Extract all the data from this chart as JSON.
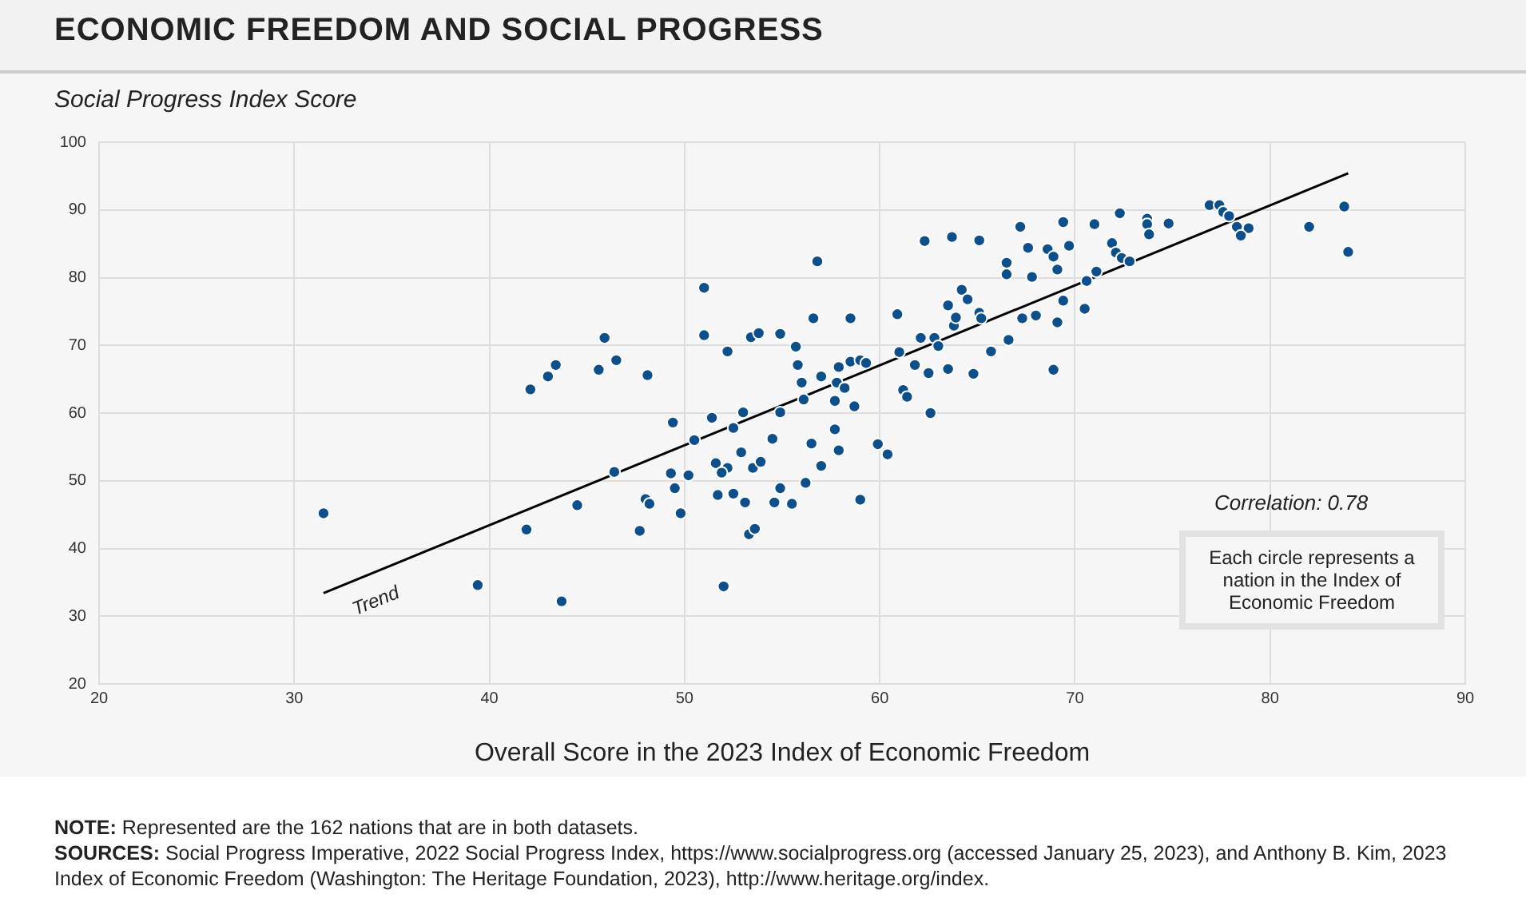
{
  "chart_data": {
    "type": "scatter",
    "title": "ECONOMIC FREEDOM AND SOCIAL PROGRESS",
    "ylabel": "Social Progress Index Score",
    "xlabel": "Overall Score in the 2023 Index of Economic Freedom",
    "xlim": [
      20,
      90
    ],
    "xticks": [
      20,
      30,
      40,
      50,
      60,
      70,
      80,
      90
    ],
    "ylim": [
      20,
      100
    ],
    "yticks": [
      20,
      30,
      40,
      50,
      60,
      70,
      80,
      90,
      100
    ],
    "grid": true,
    "legend": false,
    "series": [
      {
        "color": "#0b4f8c",
        "marker": "circle",
        "x": [
          31.5,
          41.9,
          39.4,
          43.7,
          42.1,
          43.0,
          43.4,
          45.6,
          45.9,
          46.5,
          48.1,
          49.4,
          50.5,
          46.4,
          44.5,
          49.3,
          50.2,
          49.5,
          48.0,
          48.2,
          49.8,
          47.7,
          51.0,
          56.8,
          51.0,
          52.2,
          53.4,
          53.8,
          54.9,
          55.7,
          55.8,
          56.6,
          58.5,
          60.9,
          56.0,
          57.0,
          56.1,
          57.9,
          58.5,
          59.0,
          59.3,
          57.8,
          58.2,
          57.7,
          58.7,
          61.0,
          61.8,
          62.1,
          62.5,
          62.8,
          63.0,
          63.5,
          62.6,
          61.2,
          61.4,
          64.8,
          65.7,
          66.6,
          63.8,
          63.5,
          63.9,
          64.2,
          64.5,
          65.1,
          65.2,
          62.3,
          63.7,
          65.1,
          66.5,
          66.5,
          67.2,
          67.6,
          67.8,
          68.6,
          68.9,
          69.1,
          69.4,
          69.7,
          67.3,
          68.0,
          69.1,
          69.4,
          68.9,
          70.6,
          70.5,
          51.4,
          53.0,
          52.5,
          54.9,
          54.5,
          52.9,
          56.5,
          57.7,
          57.9,
          59.9,
          60.4,
          57.0,
          51.6,
          52.2,
          51.9,
          53.5,
          53.9,
          51.7,
          52.5,
          53.1,
          54.9,
          54.6,
          55.5,
          56.2,
          59.0,
          53.3,
          53.6,
          52.0,
          71.0,
          72.3,
          73.7,
          73.7,
          73.8,
          74.8,
          71.9,
          72.1,
          72.4,
          72.8,
          71.1,
          76.9,
          77.4,
          77.6,
          77.9,
          78.3,
          78.9,
          78.5,
          82.0,
          83.8,
          84.0
        ],
        "values": [
          45.2,
          42.8,
          34.6,
          32.2,
          63.5,
          65.4,
          67.1,
          66.4,
          71.1,
          67.8,
          65.6,
          58.6,
          56.0,
          51.3,
          46.4,
          51.1,
          50.8,
          48.9,
          47.3,
          46.6,
          45.2,
          42.6,
          78.5,
          82.4,
          71.5,
          69.1,
          71.2,
          71.8,
          71.7,
          69.8,
          67.1,
          74.0,
          74.0,
          74.6,
          64.5,
          65.4,
          62.0,
          66.8,
          67.6,
          67.8,
          67.4,
          64.5,
          63.7,
          61.8,
          61.0,
          69.0,
          67.1,
          71.1,
          65.9,
          71.1,
          69.9,
          66.5,
          60.0,
          63.4,
          62.4,
          65.8,
          69.1,
          70.8,
          72.9,
          75.9,
          74.1,
          78.2,
          76.8,
          74.8,
          74.0,
          85.4,
          86.0,
          85.5,
          82.2,
          80.5,
          87.5,
          84.4,
          80.1,
          84.2,
          83.1,
          81.2,
          88.2,
          84.7,
          74.0,
          74.4,
          73.4,
          76.6,
          66.4,
          79.5,
          75.4,
          59.3,
          60.1,
          57.8,
          60.1,
          56.2,
          54.2,
          55.5,
          57.6,
          54.5,
          55.4,
          53.9,
          52.2,
          52.6,
          51.9,
          51.2,
          51.9,
          52.8,
          47.9,
          48.1,
          46.8,
          48.9,
          46.8,
          46.6,
          49.7,
          47.2,
          42.1,
          42.9,
          34.4,
          87.9,
          89.5,
          88.7,
          87.9,
          86.4,
          88.0,
          85.1,
          83.7,
          82.9,
          82.4,
          80.9,
          90.7,
          90.7,
          89.7,
          89.1,
          87.5,
          87.3,
          86.2,
          87.5,
          90.5,
          83.8
        ]
      },
      {
        "type": "line",
        "name": "Trend",
        "marker": "none",
        "color": "#000000",
        "x": [
          31.5,
          84.0
        ],
        "values": [
          33.4,
          95.4
        ]
      }
    ],
    "annotations": [
      "Correlation: 0.78",
      "Each circle represents a nation in the Index of Economic Freedom",
      "NOTE: Represented are the 162 nations that are in both datasets.",
      "SOURCES: Social Progress Imperative, 2022 Social Progress Index, https://www.socialprogress.org (accessed January 25, 2023), and Anthony B. Kim, 2023 Index of Economic Freedom (Washington: The Heritage Foundation, 2023), http://www.heritage.org/index."
    ]
  }
}
